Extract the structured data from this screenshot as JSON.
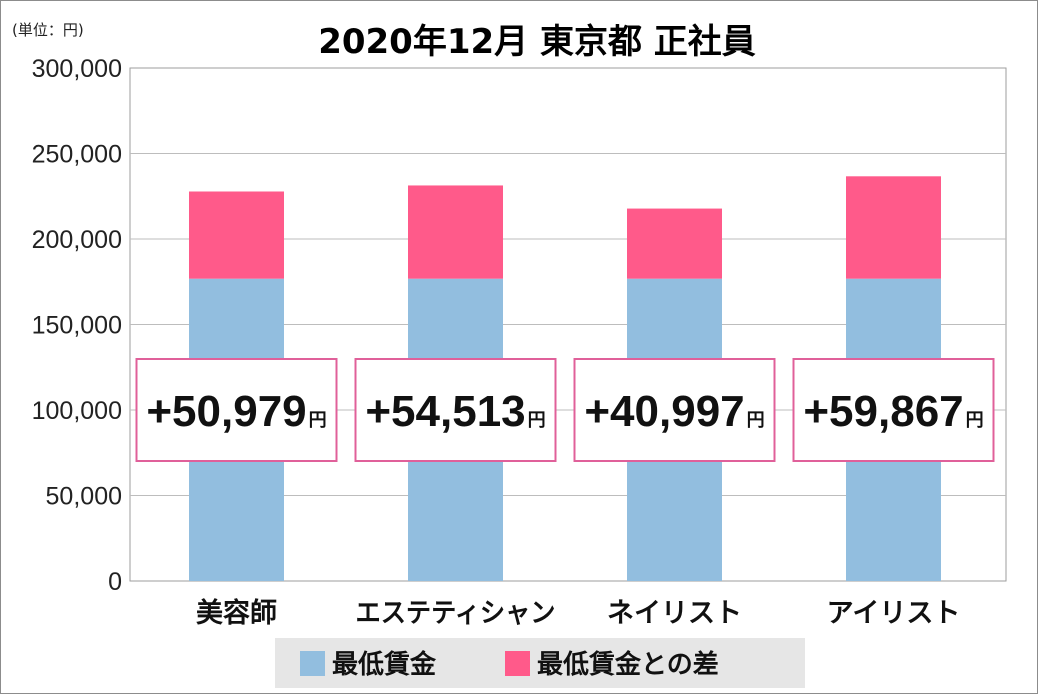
{
  "chart_data": {
    "type": "bar",
    "stacked": true,
    "title": "2020年12月 東京都 正社員",
    "unit_label": "(単位：円)",
    "categories": [
      "美容師",
      "エステティシャン",
      "ネイリスト",
      "アイリスト"
    ],
    "series": [
      {
        "name": "最低賃金",
        "color": "#92bedf",
        "values": [
          176800,
          176800,
          176800,
          176800
        ]
      },
      {
        "name": "最低賃金との差",
        "color": "#ff5a8a",
        "values": [
          50979,
          54513,
          40997,
          59867
        ]
      }
    ],
    "difference_labels": [
      "+50,979",
      "+54,513",
      "+40,997",
      "+59,867"
    ],
    "difference_unit": "円",
    "ylim": [
      0,
      300000
    ],
    "yticks": [
      0,
      50000,
      100000,
      150000,
      200000,
      250000,
      300000
    ],
    "ytick_labels": [
      "0",
      "50,000",
      "100,000",
      "150,000",
      "200,000",
      "250,000",
      "300,000"
    ],
    "grid": true,
    "legend_position": "bottom"
  }
}
